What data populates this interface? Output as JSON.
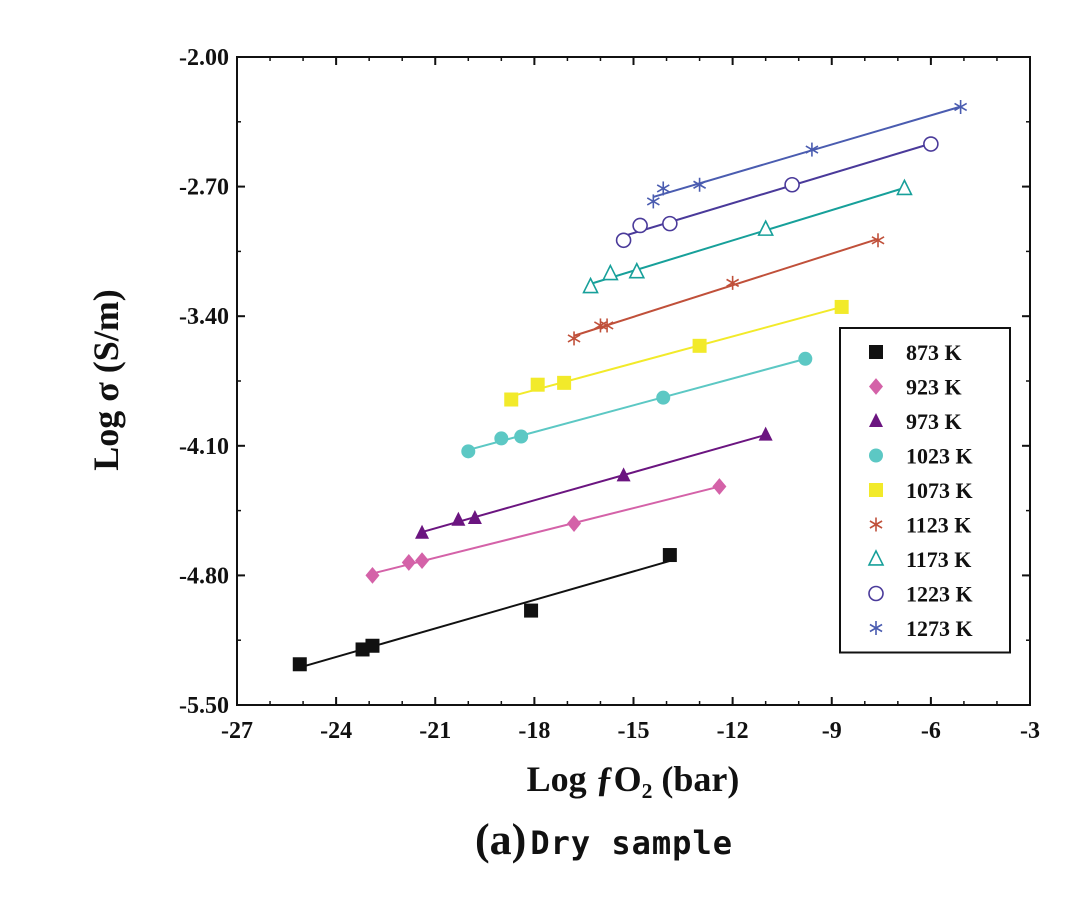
{
  "chart_data": {
    "type": "scatter",
    "title": "",
    "xlabel": "Log ƒO₂ (bar)",
    "ylabel": "Log σ (S/m)",
    "xlim": [
      -27,
      -3
    ],
    "ylim": [
      -5.5,
      -2.0
    ],
    "xticks": [
      "-27",
      "-24",
      "-21",
      "-18",
      "-15",
      "-12",
      "-9",
      "-6",
      "-3"
    ],
    "yticks": [
      "-2.00",
      "-2.70",
      "-3.40",
      "-4.10",
      "-4.80",
      "-5.50"
    ],
    "legend_position": "right",
    "grid": false,
    "series": [
      {
        "name": "873 K",
        "color": "#111111",
        "marker": "square",
        "x": [
          -25.1,
          -23.2,
          -22.9,
          -18.1,
          -13.9
        ],
        "y": [
          -5.28,
          -5.2,
          -5.18,
          -4.99,
          -4.69
        ]
      },
      {
        "name": "923 K",
        "color": "#d462a8",
        "marker": "diamond",
        "x": [
          -22.9,
          -21.8,
          -21.4,
          -16.8,
          -12.4
        ],
        "y": [
          -4.8,
          -4.73,
          -4.72,
          -4.52,
          -4.32
        ]
      },
      {
        "name": "973 K",
        "color": "#6b1580",
        "marker": "triangle",
        "x": [
          -21.4,
          -20.3,
          -19.8,
          -15.3,
          -11.0
        ],
        "y": [
          -4.57,
          -4.5,
          -4.49,
          -4.26,
          -4.04
        ]
      },
      {
        "name": "1023 K",
        "color": "#5cc8c4",
        "marker": "circle",
        "x": [
          -20.0,
          -19.0,
          -18.4,
          -14.1,
          -9.8
        ],
        "y": [
          -4.13,
          -4.06,
          -4.05,
          -3.84,
          -3.63
        ]
      },
      {
        "name": "1073 K",
        "color": "#f2ea2a",
        "marker": "square",
        "x": [
          -18.7,
          -17.9,
          -17.1,
          -13.0,
          -8.7
        ],
        "y": [
          -3.85,
          -3.77,
          -3.76,
          -3.56,
          -3.35
        ]
      },
      {
        "name": "1123 K",
        "color": "#c0503a",
        "marker": "asterisk",
        "x": [
          -16.8,
          -16.0,
          -15.8,
          -12.0,
          -7.6
        ],
        "y": [
          -3.52,
          -3.45,
          -3.45,
          -3.22,
          -2.99
        ]
      },
      {
        "name": "1173 K",
        "color": "#17a09a",
        "marker": "triangle-open",
        "x": [
          -16.3,
          -15.7,
          -14.9,
          -11.0,
          -6.8
        ],
        "y": [
          -3.24,
          -3.17,
          -3.16,
          -2.93,
          -2.71
        ]
      },
      {
        "name": "1223 K",
        "color": "#4a3a9a",
        "marker": "circle-open",
        "x": [
          -15.3,
          -14.8,
          -13.9,
          -10.2,
          -6.0
        ],
        "y": [
          -2.99,
          -2.91,
          -2.9,
          -2.69,
          -2.47
        ]
      },
      {
        "name": "1273 K",
        "color": "#4a5cb0",
        "marker": "asterisk",
        "x": [
          -14.4,
          -14.1,
          -13.0,
          -9.6,
          -5.1
        ],
        "y": [
          -2.78,
          -2.71,
          -2.69,
          -2.5,
          -2.27
        ]
      }
    ]
  },
  "caption": {
    "tag": "(a)",
    "text": "Dry sample"
  }
}
